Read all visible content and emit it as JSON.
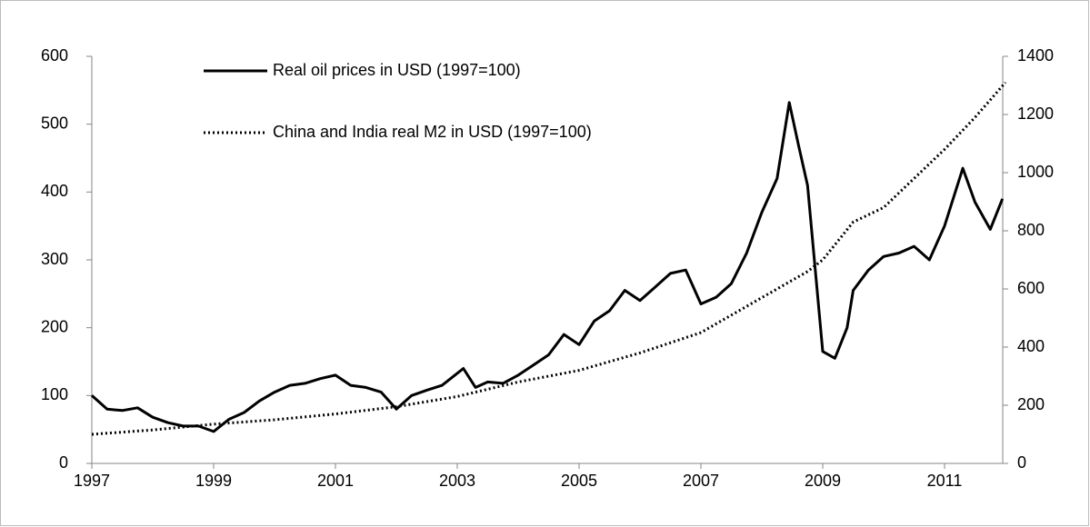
{
  "chart_data": {
    "type": "line",
    "xlim": [
      1997,
      2012
    ],
    "xticks": [
      1997,
      1999,
      2001,
      2003,
      2005,
      2007,
      2009,
      2011
    ],
    "ylim": [
      0,
      600
    ],
    "yticks": [
      0,
      100,
      200,
      300,
      400,
      500,
      600
    ],
    "y2lim": [
      0,
      1400
    ],
    "y2ticks": [
      0,
      200,
      400,
      600,
      800,
      1000,
      1200,
      1400
    ],
    "grid": false,
    "legend": "top",
    "series": [
      {
        "name": "Real oil prices in USD (1997=100)",
        "color": "#000000",
        "style": "solid",
        "x": [
          1997,
          1997.25,
          1997.5,
          1997.75,
          1998,
          1998.25,
          1998.5,
          1998.75,
          1999,
          1999.25,
          1999.5,
          1999.75,
          2000,
          2000.25,
          2000.5,
          2000.75,
          2001,
          2001.25,
          2001.5,
          2001.75,
          2002,
          2002.25,
          2002.5,
          2002.75,
          2003.1,
          2003.3,
          2003.5,
          2003.75,
          2004,
          2004.25,
          2004.5,
          2004.75,
          2005,
          2005.25,
          2005.5,
          2005.75,
          2006,
          2006.25,
          2006.5,
          2006.75,
          2007,
          2007.25,
          2007.5,
          2007.75,
          2008,
          2008.25,
          2008.45,
          2008.6,
          2008.75,
          2009,
          2009.2,
          2009.4,
          2009.5,
          2009.75,
          2010,
          2010.25,
          2010.5,
          2010.75,
          2011,
          2011.3,
          2011.5,
          2011.75,
          2011.95
        ],
        "values": [
          100,
          80,
          78,
          82,
          68,
          60,
          55,
          55,
          47,
          65,
          75,
          92,
          105,
          115,
          118,
          125,
          130,
          115,
          112,
          105,
          80,
          100,
          108,
          115,
          140,
          112,
          120,
          118,
          130,
          145,
          160,
          190,
          175,
          210,
          225,
          255,
          240,
          260,
          280,
          285,
          235,
          245,
          265,
          310,
          370,
          420,
          532,
          470,
          410,
          165,
          155,
          200,
          255,
          285,
          305,
          310,
          320,
          300,
          350,
          435,
          385,
          345,
          390
        ]
      },
      {
        "name": "China and India real M2 in USD (1997=100)",
        "color": "#000000",
        "style": "dotted",
        "axis": "y2",
        "x": [
          1997,
          1998,
          1999,
          2000,
          2001,
          2002,
          2003,
          2004,
          2005,
          2006,
          2007,
          2008,
          2008.75,
          2009,
          2009.5,
          2010,
          2010.5,
          2011,
          2011.5,
          2012
        ],
        "values": [
          100,
          115,
          135,
          150,
          170,
          195,
          230,
          280,
          320,
          380,
          450,
          570,
          660,
          700,
          830,
          880,
          980,
          1080,
          1190,
          1310
        ]
      }
    ]
  }
}
